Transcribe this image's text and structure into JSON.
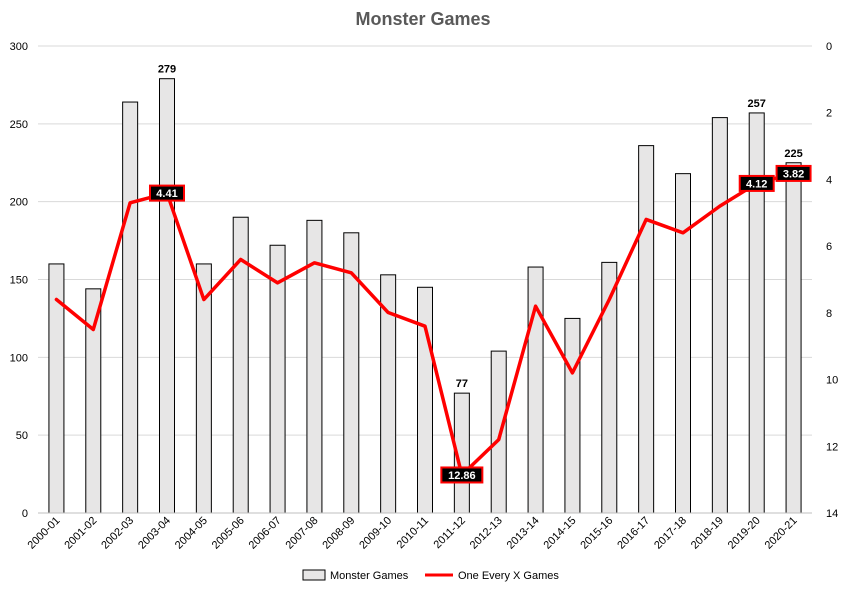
{
  "chart_data": {
    "type": "bar",
    "title": "Monster Games",
    "categories": [
      "2000-01",
      "2001-02",
      "2002-03",
      "2003-04",
      "2004-05",
      "2005-06",
      "2006-07",
      "2007-08",
      "2008-09",
      "2009-10",
      "2010-11",
      "2011-12",
      "2012-13",
      "2013-14",
      "2014-15",
      "2015-16",
      "2016-17",
      "2017-18",
      "2018-19",
      "2019-20",
      "2020-21"
    ],
    "series": [
      {
        "name": "Monster Games",
        "type": "bar",
        "axis": "left",
        "color": "#e7e6e6",
        "values": [
          160,
          144,
          264,
          279,
          160,
          190,
          172,
          188,
          180,
          153,
          145,
          77,
          104,
          158,
          125,
          161,
          236,
          218,
          254,
          257,
          225
        ]
      },
      {
        "name": "One Every X Games",
        "type": "line",
        "axis": "right",
        "color": "#ff0000",
        "values": [
          7.6,
          8.5,
          4.7,
          4.41,
          7.6,
          6.4,
          7.1,
          6.5,
          6.8,
          7.99,
          8.4,
          12.86,
          11.8,
          7.8,
          9.8,
          7.6,
          5.2,
          5.6,
          4.8,
          4.12,
          3.82
        ]
      }
    ],
    "bar_labels": [
      {
        "index": 3,
        "text": "279"
      },
      {
        "index": 11,
        "text": "77"
      },
      {
        "index": 19,
        "text": "257"
      },
      {
        "index": 20,
        "text": "225"
      }
    ],
    "line_callouts": [
      {
        "index": 3,
        "text": "4.41"
      },
      {
        "index": 11,
        "text": "12.86"
      },
      {
        "index": 19,
        "text": "4.12"
      },
      {
        "index": 20,
        "text": "3.82"
      }
    ],
    "y_left": {
      "min": 0,
      "max": 300,
      "step": 50,
      "ticks": [
        "0",
        "50",
        "100",
        "150",
        "200",
        "250",
        "300"
      ]
    },
    "y_right": {
      "min": 0,
      "max": 14,
      "step": 2,
      "reversed": true,
      "ticks": [
        "0",
        "2",
        "4",
        "6",
        "8",
        "10",
        "12",
        "14"
      ]
    },
    "grid": true,
    "legend_position": "bottom"
  }
}
